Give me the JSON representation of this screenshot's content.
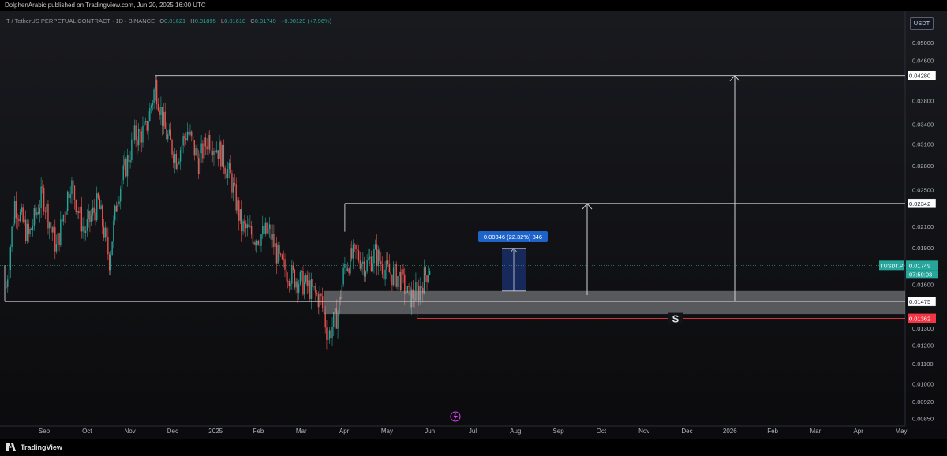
{
  "header": {
    "published": "DolphenArabic published on TradingView.com, Jun 20, 2025 16:00 UTC"
  },
  "legend": {
    "symbol": "T / TetherUS PERPETUAL CONTRACT · 1D · BINANCE",
    "o_label": "O",
    "o_value": "0.01621",
    "h_label": "H",
    "h_value": "0.01895",
    "l_label": "L",
    "l_value": "0.01618",
    "c_label": "C",
    "c_value": "0.01749",
    "change": "+0.00129 (+7.96%)"
  },
  "currency_button": "USDT",
  "footer": {
    "brand": "TradingView"
  },
  "colors": {
    "up": "#26a69a",
    "down": "#ef5350",
    "background": "#131418",
    "level_white": "#d1d4dc",
    "level_red": "#f23645",
    "measure_blue": "#2962ff"
  },
  "chart_data": {
    "type": "candlestick",
    "symbol": "TUSDT.P",
    "y_scale": "log",
    "ylim": [
      0.0082,
      0.058
    ],
    "y_ticks": [
      "0.05400",
      "0.05000",
      "0.04600",
      "0.04280",
      "0.03800",
      "0.03400",
      "0.03100",
      "0.02800",
      "0.02500",
      "0.02342",
      "0.02100",
      "0.01900",
      "0.01749",
      "0.01600",
      "0.01475",
      "0.01362",
      "0.01300",
      "0.01200",
      "0.01100",
      "0.01000",
      "0.00920",
      "0.00850"
    ],
    "x_ticks": [
      "Sep",
      "Oct",
      "Nov",
      "Dec",
      "2025",
      "Feb",
      "Mar",
      "Apr",
      "May",
      "Jun",
      "Jul",
      "Aug",
      "Sep",
      "Oct",
      "Nov",
      "Dec",
      "2026",
      "Feb",
      "Mar",
      "Apr",
      "May"
    ],
    "price_labels": [
      {
        "text": "0.04280",
        "value": 0.0428,
        "style": "white"
      },
      {
        "text": "0.02342",
        "value": 0.02342,
        "style": "white"
      },
      {
        "text": "TUSDT.P",
        "value": 0.01749,
        "style": "green"
      },
      {
        "text": "0.01749",
        "value": 0.01749,
        "style": "green"
      },
      {
        "text": "07:59:03",
        "value": 0.01749,
        "style": "green-timer"
      },
      {
        "text": "0.01475",
        "value": 0.01475,
        "style": "white"
      },
      {
        "text": "0.01362",
        "value": 0.01362,
        "style": "red"
      }
    ],
    "levels": [
      {
        "name": "resistance-2",
        "value": 0.0428
      },
      {
        "name": "resistance-1",
        "value": 0.02342
      },
      {
        "name": "support",
        "value": 0.01475
      },
      {
        "name": "stop",
        "value": 0.01362
      }
    ],
    "support_zone": [
      0.0139,
      0.0155
    ],
    "measure_label": "0.00346 (22.32%) 346",
    "stop_marker": "S",
    "candle_path": [
      [
        "2024-08-20",
        0.0158
      ],
      [
        "2024-08-26",
        0.0235
      ],
      [
        "2024-09-05",
        0.02
      ],
      [
        "2024-09-15",
        0.0245
      ],
      [
        "2024-09-25",
        0.019
      ],
      [
        "2024-10-05",
        0.026
      ],
      [
        "2024-10-15",
        0.0205
      ],
      [
        "2024-10-25",
        0.0235
      ],
      [
        "2024-11-02",
        0.018
      ],
      [
        "2024-11-08",
        0.0245
      ],
      [
        "2024-11-20",
        0.032
      ],
      [
        "2024-11-28",
        0.033
      ],
      [
        "2024-12-05",
        0.041
      ],
      [
        "2024-12-12",
        0.033
      ],
      [
        "2024-12-20",
        0.029
      ],
      [
        "2024-12-28",
        0.033
      ],
      [
        "2025-01-05",
        0.0285
      ],
      [
        "2025-01-12",
        0.032
      ],
      [
        "2025-01-20",
        0.03
      ],
      [
        "2025-01-28",
        0.0265
      ],
      [
        "2025-02-05",
        0.021
      ],
      [
        "2025-02-15",
        0.02
      ],
      [
        "2025-02-25",
        0.0205
      ],
      [
        "2025-03-05",
        0.0175
      ],
      [
        "2025-03-15",
        0.0165
      ],
      [
        "2025-03-25",
        0.0158
      ],
      [
        "2025-04-03",
        0.0148
      ],
      [
        "2025-04-08",
        0.0125
      ],
      [
        "2025-04-15",
        0.014
      ],
      [
        "2025-04-20",
        0.0175
      ],
      [
        "2025-04-28",
        0.0185
      ],
      [
        "2025-05-05",
        0.0175
      ],
      [
        "2025-05-12",
        0.0185
      ],
      [
        "2025-05-20",
        0.017
      ],
      [
        "2025-05-30",
        0.0165
      ],
      [
        "2025-06-05",
        0.015
      ],
      [
        "2025-06-12",
        0.0155
      ],
      [
        "2025-06-16",
        0.0165
      ],
      [
        "2025-06-20",
        0.0175
      ]
    ]
  }
}
